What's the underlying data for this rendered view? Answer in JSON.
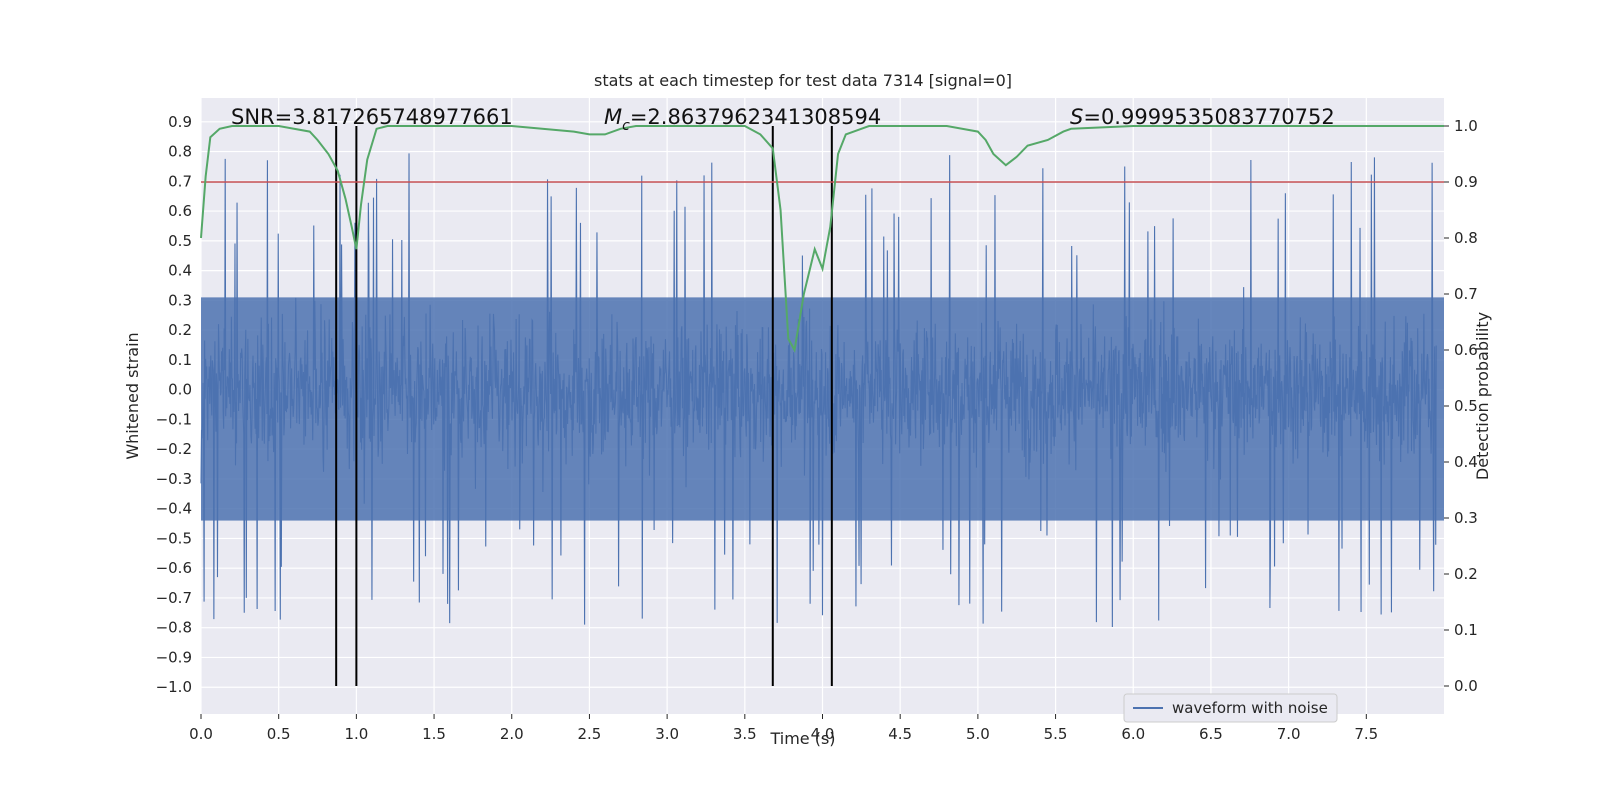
{
  "chart_data": {
    "type": "line",
    "title": "stats at each timestep for test data 7314 [signal=0]",
    "xlabel": "Time (s)",
    "ylabel_left": "Whitened strain",
    "ylabel_right": "Detection probability",
    "xlim": [
      0.0,
      8.0
    ],
    "ylim_left": [
      -1.09,
      0.98
    ],
    "ylim_right": [
      -0.05,
      1.05
    ],
    "x_ticks": [
      "0.0",
      "0.5",
      "1.0",
      "1.5",
      "2.0",
      "2.5",
      "3.0",
      "3.5",
      "4.0",
      "4.5",
      "5.0",
      "5.5",
      "6.0",
      "6.5",
      "7.0",
      "7.5"
    ],
    "y_left_ticks": [
      "0.9",
      "0.8",
      "0.7",
      "0.6",
      "0.5",
      "0.4",
      "0.3",
      "0.2",
      "0.1",
      "0.0",
      "−0.1",
      "−0.2",
      "−0.3",
      "−0.4",
      "−0.5",
      "−0.6",
      "−0.7",
      "−0.8",
      "−0.9",
      "−1.0"
    ],
    "y_right_ticks": [
      "1.0",
      "0.9",
      "0.8",
      "0.7",
      "0.6",
      "0.5",
      "0.4",
      "0.3",
      "0.2",
      "0.1",
      "0.0"
    ],
    "threshold": 0.9,
    "threshold_color": "#c44e52",
    "vertical_lines": [
      0.87,
      1.0,
      3.68,
      4.06
    ],
    "annotations": {
      "snr": "SNR=3.817265748977661",
      "mc_symbol": "M",
      "mc_sub": "c",
      "mc_value": "=2.8637962341308594",
      "s_symbol": "S",
      "s_value": "=0.9999535083770752"
    },
    "series": [
      {
        "name": "waveform with noise",
        "axis": "left",
        "color": "#4c72b0",
        "description": "whitened noisy strain, dense, mostly within ±0.45 with spikes to about 0.9 and −1.0"
      },
      {
        "name": "detection probability",
        "axis": "right",
        "color": "#55a868",
        "x": [
          0.0,
          0.03,
          0.06,
          0.12,
          0.2,
          0.3,
          0.5,
          0.7,
          0.75,
          0.82,
          0.88,
          0.93,
          0.97,
          1.0,
          1.03,
          1.07,
          1.13,
          1.2,
          1.5,
          2.0,
          2.4,
          2.5,
          2.6,
          2.7,
          2.8,
          3.0,
          3.5,
          3.6,
          3.68,
          3.73,
          3.78,
          3.82,
          3.88,
          3.95,
          4.0,
          4.05,
          4.1,
          4.15,
          4.3,
          4.8,
          5.0,
          5.05,
          5.1,
          5.18,
          5.25,
          5.32,
          5.45,
          5.55,
          5.6,
          6.0,
          7.0,
          7.6,
          8.0
        ],
        "y": [
          0.8,
          0.91,
          0.98,
          0.995,
          1.0,
          1.0,
          1.0,
          0.99,
          0.975,
          0.95,
          0.92,
          0.87,
          0.82,
          0.78,
          0.86,
          0.94,
          0.995,
          1.0,
          1.0,
          1.0,
          0.99,
          0.985,
          0.985,
          0.995,
          1.0,
          1.0,
          1.0,
          0.985,
          0.96,
          0.85,
          0.62,
          0.6,
          0.7,
          0.78,
          0.745,
          0.82,
          0.95,
          0.985,
          1.0,
          1.0,
          0.99,
          0.975,
          0.95,
          0.93,
          0.945,
          0.965,
          0.975,
          0.99,
          0.995,
          1.0,
          1.0,
          1.0,
          1.0
        ]
      }
    ],
    "legend": {
      "entries": [
        "waveform with noise"
      ],
      "position": "lower right"
    },
    "grid": true
  },
  "colors": {
    "plot_bg": "#eaeaf2",
    "grid": "#ffffff",
    "waveform": "#4c72b0",
    "probability": "#55a868",
    "threshold": "#c44e52",
    "event_line": "#000000"
  }
}
